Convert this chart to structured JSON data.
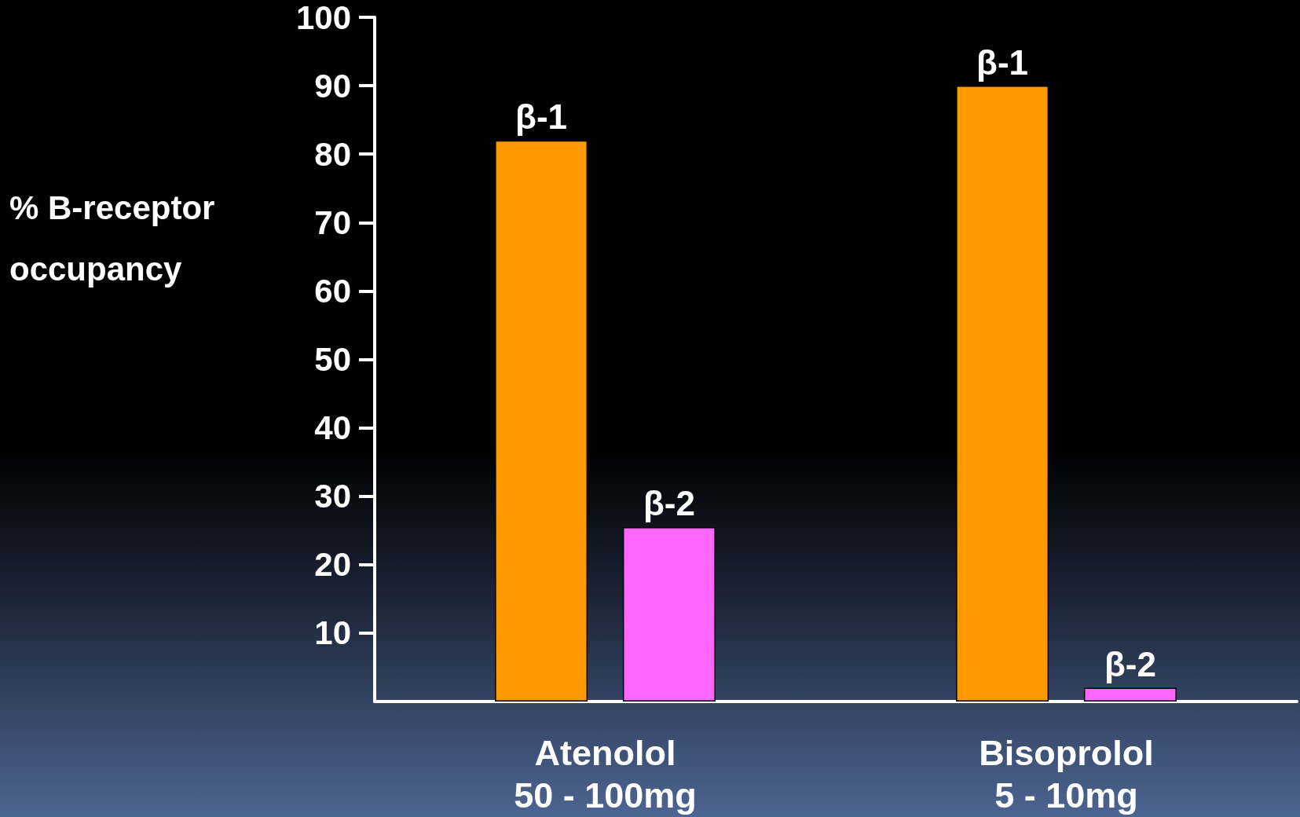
{
  "chart_data": {
    "type": "bar",
    "ylabel": "% B-receptor occupancy",
    "categories": [
      "Atenolol\n50 - 100mg",
      "Bisoprolol\n5 - 10mg"
    ],
    "series": [
      {
        "name": "β-1",
        "color": "#ff9900",
        "values": [
          82,
          90
        ]
      },
      {
        "name": "β-2",
        "color": "#ff66ff",
        "values": [
          25.5,
          2
        ]
      }
    ],
    "ylim": [
      0,
      100
    ],
    "yticks": [
      10,
      20,
      30,
      40,
      50,
      60,
      70,
      80,
      90,
      100
    ],
    "grid": false,
    "legend": false
  }
}
